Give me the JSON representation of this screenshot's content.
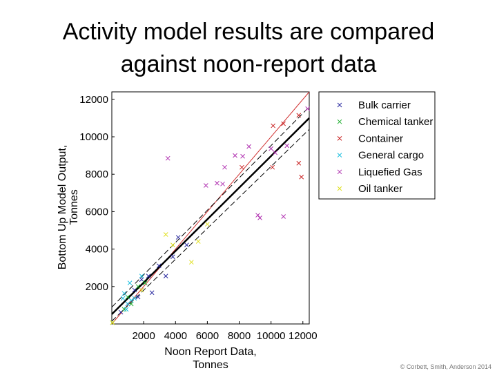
{
  "title": [
    "Activity model results are compared",
    "against noon-report data"
  ],
  "footer": "© Corbett, Smith, Anderson 2014",
  "chart_data": {
    "type": "scatter",
    "xlabel": [
      "Noon Report Data,",
      "Tonnes"
    ],
    "ylabel": [
      "Bottom Up Model Output,",
      "Tonnes"
    ],
    "xlim": [
      0,
      12400
    ],
    "ylim": [
      0,
      12400
    ],
    "xticks": [
      2000,
      4000,
      6000,
      8000,
      10000,
      12000
    ],
    "yticks": [
      2000,
      4000,
      6000,
      8000,
      10000,
      12000
    ],
    "grid": false,
    "legend": "outside-right",
    "identity_line": {
      "color": "#d03030",
      "x": [
        0,
        12400
      ],
      "y": [
        0,
        12400
      ]
    },
    "fit_line": {
      "color": "#000000",
      "x": [
        0,
        12400
      ],
      "y": [
        520,
        11000
      ]
    },
    "fit_band": {
      "color": "#000000",
      "x": [
        0,
        12400
      ],
      "upper": [
        900,
        11600
      ],
      "lower": [
        150,
        10400
      ]
    },
    "series": [
      {
        "name": "Bulk carrier",
        "color": "#2a2aa0",
        "x": [
          1650,
          2300,
          3830,
          4700,
          4170,
          2520,
          1000,
          1430,
          2960,
          570,
          3390,
          1870
        ],
        "values": [
          1440,
          2560,
          3590,
          4220,
          4630,
          1670,
          1070,
          1810,
          3110,
          630,
          2560,
          2370
        ]
      },
      {
        "name": "Chemical tanker",
        "color": "#20b030",
        "x": [
          40,
          780,
          1220,
          1650,
          2090,
          1000
        ],
        "values": [
          70,
          780,
          1070,
          2000,
          2190,
          1440
        ]
      },
      {
        "name": "Container",
        "color": "#c82020",
        "x": [
          10130,
          10780,
          11740,
          11910,
          10090,
          11740,
          8170
        ],
        "values": [
          10590,
          10700,
          8590,
          7850,
          8370,
          11150,
          8370
        ]
      },
      {
        "name": "General cargo",
        "color": "#20c0e0",
        "x": [
          780,
          1130,
          1000,
          1220,
          700,
          1430,
          1870,
          910
        ],
        "values": [
          1630,
          2190,
          1070,
          1260,
          1370,
          1370,
          2560,
          780
        ]
      },
      {
        "name": "Liquefied Gas",
        "color": "#b030b0",
        "x": [
          3520,
          5910,
          6610,
          6960,
          7090,
          7740,
          8220,
          8610,
          9170,
          9300,
          10000,
          10780,
          12300,
          10260,
          11000
        ],
        "values": [
          8850,
          7400,
          7520,
          7480,
          8370,
          9000,
          8960,
          9480,
          5810,
          5670,
          9370,
          5740,
          11500,
          9150,
          9520
        ]
      },
      {
        "name": "Oil tanker",
        "color": "#e0e020",
        "x": [
          40,
          3390,
          5430,
          5000,
          6000,
          3830,
          1870
        ],
        "values": [
          70,
          4780,
          4410,
          3300,
          5330,
          4220,
          1810
        ]
      }
    ]
  }
}
